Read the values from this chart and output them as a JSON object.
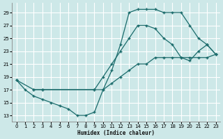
{
  "xlabel": "Humidex (Indice chaleur)",
  "bg_color": "#cde8e8",
  "line_color": "#1a6b6b",
  "grid_color": "#ffffff",
  "xlim": [
    -0.5,
    23.5
  ],
  "ylim": [
    12,
    30.5
  ],
  "yticks": [
    13,
    15,
    17,
    19,
    21,
    23,
    25,
    27,
    29
  ],
  "xticks": [
    0,
    1,
    2,
    3,
    4,
    5,
    6,
    7,
    8,
    9,
    10,
    11,
    12,
    13,
    14,
    15,
    16,
    17,
    18,
    19,
    20,
    21,
    22,
    23
  ],
  "series": [
    {
      "x": [
        0,
        1,
        2,
        3,
        4,
        5,
        6,
        7,
        8,
        9,
        10,
        11,
        12,
        13,
        14,
        15,
        16,
        17,
        18,
        19,
        20,
        21,
        22,
        23
      ],
      "y": [
        18.5,
        17,
        16,
        15.5,
        15,
        14.5,
        14,
        13,
        13,
        13.5,
        17,
        20,
        24,
        29,
        29.5,
        29.5,
        29.5,
        29,
        29,
        29,
        27,
        25,
        24,
        22.5
      ]
    },
    {
      "x": [
        2,
        3,
        9,
        10,
        11,
        12,
        13,
        14,
        15,
        16,
        17,
        18,
        19,
        20,
        21,
        22,
        23
      ],
      "y": [
        17,
        17,
        17,
        19,
        21,
        23,
        25,
        27,
        27,
        26.5,
        25,
        24,
        22,
        21.5,
        23,
        24,
        22.5
      ]
    },
    {
      "x": [
        0,
        2,
        3,
        9,
        10,
        11,
        12,
        13,
        14,
        15,
        16,
        17,
        18,
        19,
        20,
        21,
        22,
        23
      ],
      "y": [
        18.5,
        17,
        17,
        17,
        17,
        18,
        19,
        20,
        21,
        21,
        22,
        22,
        22,
        22,
        22,
        22,
        22,
        22.5
      ]
    }
  ]
}
